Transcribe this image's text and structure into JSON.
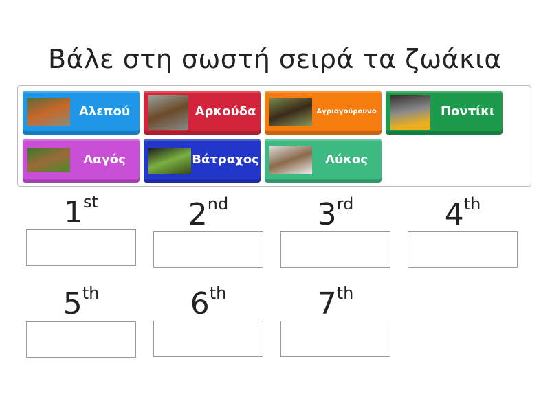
{
  "title": "Βάλε στη σωστή σειρά τα ζωάκια",
  "tiles": [
    {
      "label": "Αλεπού",
      "color": "#1f97e6",
      "icon": "fox-photo"
    },
    {
      "label": "Αρκούδα",
      "color": "#d2243a",
      "icon": "bear-photo"
    },
    {
      "label": "Αγριογούρουνο",
      "color": "#f57c0f",
      "icon": "wild-boar-photo"
    },
    {
      "label": "Ποντίκι",
      "color": "#1e9a4d",
      "icon": "mouse-photo"
    },
    {
      "label": "Λαγός",
      "color": "#c94fd6",
      "icon": "hare-photo"
    },
    {
      "label": "Βάτραχος",
      "color": "#2236c9",
      "icon": "frog-photo"
    },
    {
      "label": "Λύκος",
      "color": "#3dba82",
      "icon": "wolf-photo"
    }
  ],
  "slots": [
    {
      "num": "1",
      "suffix": "st"
    },
    {
      "num": "2",
      "suffix": "nd"
    },
    {
      "num": "3",
      "suffix": "rd"
    },
    {
      "num": "4",
      "suffix": "th"
    },
    {
      "num": "5",
      "suffix": "th"
    },
    {
      "num": "6",
      "suffix": "th"
    },
    {
      "num": "7",
      "suffix": "th"
    }
  ]
}
